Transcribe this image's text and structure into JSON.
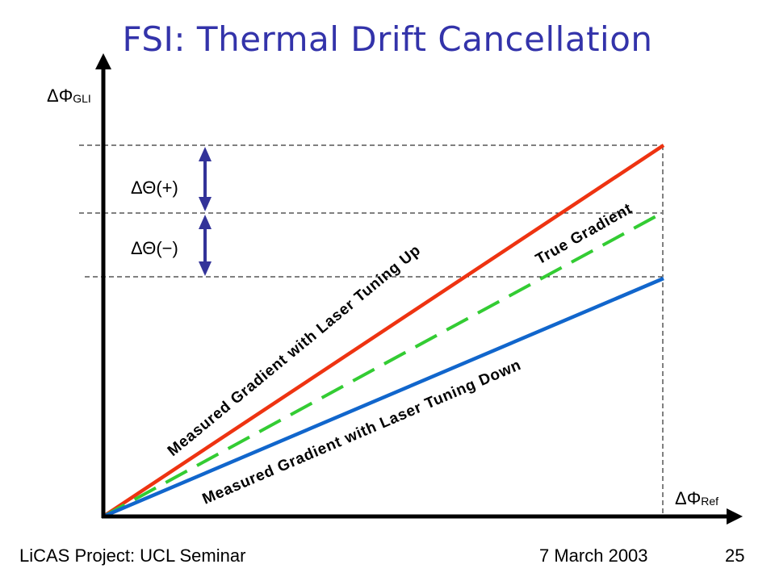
{
  "slide": {
    "title": "FSI: Thermal Drift Cancellation"
  },
  "diagram": {
    "y_axis_label": {
      "symbol": "ΔΦ",
      "subscript": "GLI"
    },
    "x_axis_label": {
      "symbol": "ΔΦ",
      "subscript": "Ref"
    },
    "delta_theta_plus": "ΔΘ(+)",
    "delta_theta_minus": "ΔΘ(−)",
    "lines": {
      "up": {
        "label": "Measured Gradient with Laser Tuning Up",
        "color": "#ee3311"
      },
      "true": {
        "label": "True Gradient",
        "color": "#33cc33"
      },
      "down": {
        "label": "Measured Gradient with Laser Tuning Down",
        "color": "#1166cc"
      }
    },
    "arrow_color": "#333399"
  },
  "footer": {
    "left": "LiCAS Project: UCL Seminar",
    "date": "7 March 2003",
    "page": "25"
  }
}
